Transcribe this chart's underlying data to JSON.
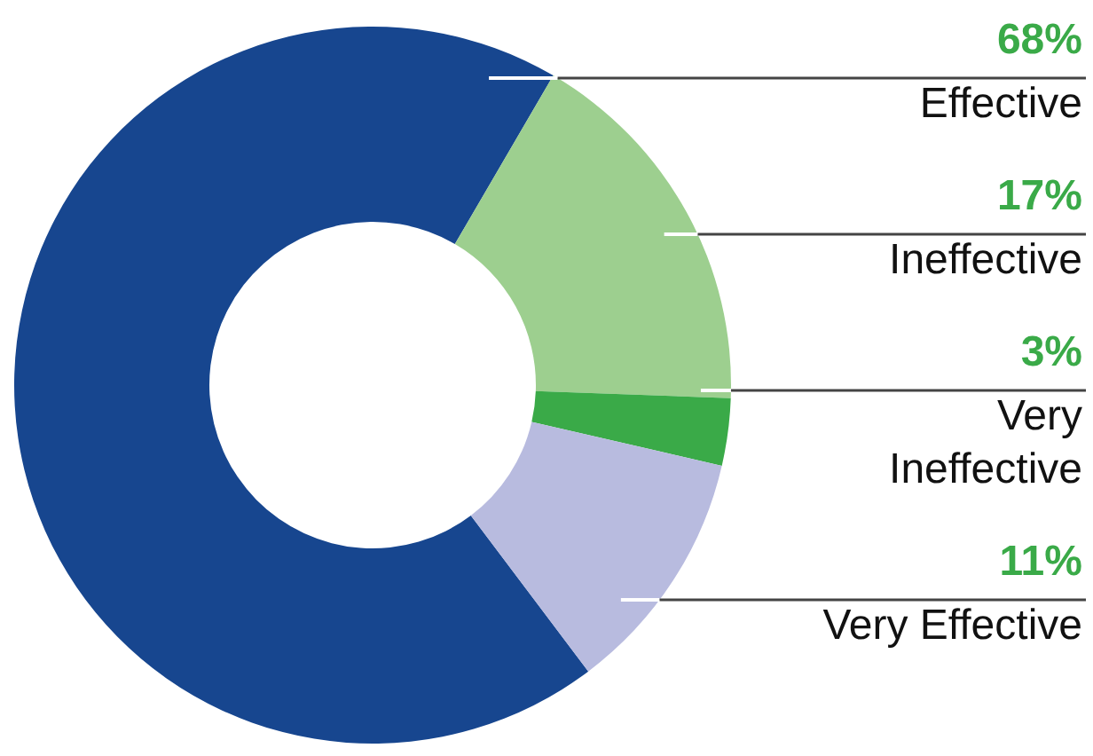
{
  "chart_data": {
    "type": "donut",
    "categories": [
      "Effective",
      "Ineffective",
      "Very Ineffective",
      "Very Effective"
    ],
    "values": [
      68,
      17,
      3,
      11
    ],
    "colors": [
      "#17468f",
      "#9dcf8f",
      "#3aaa48",
      "#b8bbdf"
    ],
    "value_labels": [
      "68%",
      "17%",
      "3%",
      "11%"
    ]
  }
}
